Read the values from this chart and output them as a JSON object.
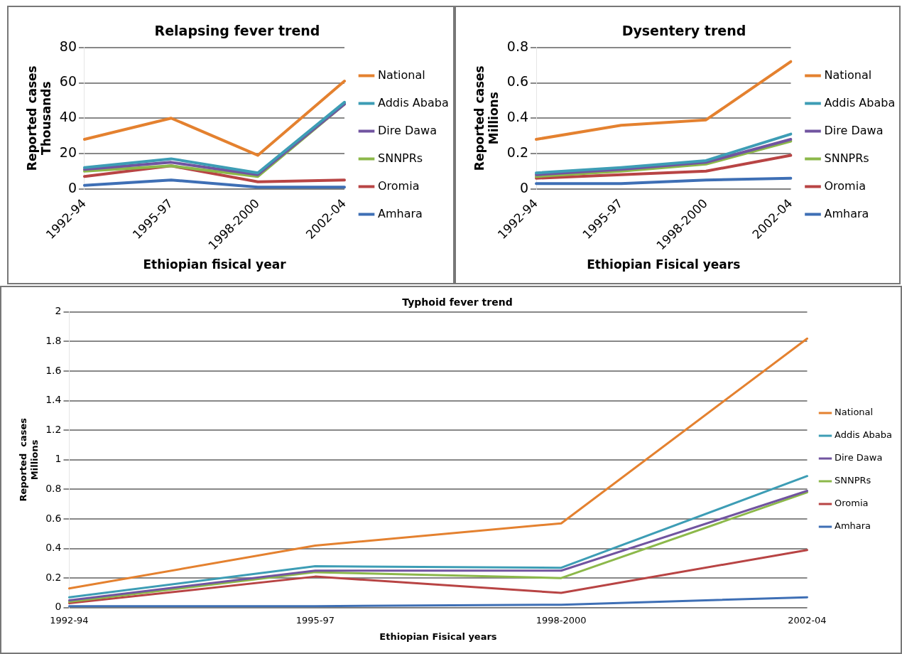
{
  "chart_data": [
    {
      "type": "line",
      "title": "Relapsing fever trend",
      "xlabel": "Ethiopian fisical year",
      "ylabel": "Reported cases",
      "annotations": [
        "Thousands"
      ],
      "categories": [
        "1992-94",
        "1995-97",
        "1998-2000",
        "2002-04"
      ],
      "ylim": [
        0,
        80
      ],
      "yticks": [
        0,
        20,
        40,
        60,
        80
      ],
      "grid": "y",
      "legend": "right",
      "marker": "none",
      "line_style": "solid",
      "series": [
        {
          "name": "National",
          "color": "#e4812f",
          "values": [
            28,
            40,
            19,
            61
          ]
        },
        {
          "name": "Addis Ababa",
          "color": "#3d9db5",
          "values": [
            12,
            17,
            9,
            49
          ]
        },
        {
          "name": "Dire Dawa",
          "color": "#7154a0",
          "values": [
            11,
            15,
            8,
            48
          ]
        },
        {
          "name": "SNNPRs",
          "color": "#8cb84a",
          "values": [
            10,
            13,
            7,
            48
          ]
        },
        {
          "name": "Oromia",
          "color": "#b84444",
          "values": [
            7,
            13,
            4,
            5
          ]
        },
        {
          "name": "Amhara",
          "color": "#3e6fb5",
          "values": [
            2,
            5,
            1,
            1
          ]
        }
      ]
    },
    {
      "type": "line",
      "title": "Dysentery trend",
      "xlabel": "Ethiopian Fisical years",
      "ylabel": "Reported cases",
      "annotations": [
        "Millions"
      ],
      "categories": [
        "1992-94",
        "1995-97",
        "1998-2000",
        "2002-04"
      ],
      "ylim": [
        0,
        0.8
      ],
      "yticks": [
        0,
        0.2,
        0.4,
        0.6,
        0.8
      ],
      "grid": "y",
      "legend": "right",
      "marker": "none",
      "line_style": "solid",
      "series": [
        {
          "name": "National",
          "color": "#e4812f",
          "values": [
            0.28,
            0.36,
            0.39,
            0.72
          ]
        },
        {
          "name": "Addis Ababa",
          "color": "#3d9db5",
          "values": [
            0.09,
            0.12,
            0.16,
            0.31
          ]
        },
        {
          "name": "Dire Dawa",
          "color": "#7154a0",
          "values": [
            0.08,
            0.11,
            0.15,
            0.28
          ]
        },
        {
          "name": "SNNPRs",
          "color": "#8cb84a",
          "values": [
            0.07,
            0.1,
            0.14,
            0.27
          ]
        },
        {
          "name": "Oromia",
          "color": "#b84444",
          "values": [
            0.06,
            0.08,
            0.1,
            0.19
          ]
        },
        {
          "name": "Amhara",
          "color": "#3e6fb5",
          "values": [
            0.03,
            0.03,
            0.05,
            0.06
          ]
        }
      ]
    },
    {
      "type": "line",
      "title": "Typhoid fever trend",
      "xlabel": "Ethiopian Fisical years",
      "ylabel": "Reported  cases",
      "annotations": [
        "Millions"
      ],
      "categories": [
        "1992-94",
        "1995-97",
        "1998-2000",
        "2002-04"
      ],
      "ylim": [
        0,
        2
      ],
      "yticks": [
        0,
        0.2,
        0.4,
        0.6,
        0.8,
        1,
        1.2,
        1.4,
        1.6,
        1.8,
        2
      ],
      "grid": "y",
      "legend": "right",
      "marker": "none",
      "line_style": "solid",
      "series": [
        {
          "name": "National",
          "color": "#e4812f",
          "values": [
            0.13,
            0.42,
            0.57,
            1.82
          ]
        },
        {
          "name": "Addis Ababa",
          "color": "#3d9db5",
          "values": [
            0.07,
            0.28,
            0.27,
            0.89
          ]
        },
        {
          "name": "Dire Dawa",
          "color": "#7154a0",
          "values": [
            0.05,
            0.25,
            0.25,
            0.79
          ]
        },
        {
          "name": "SNNPRs",
          "color": "#8cb84a",
          "values": [
            0.04,
            0.24,
            0.2,
            0.78
          ]
        },
        {
          "name": "Oromia",
          "color": "#b84444",
          "values": [
            0.03,
            0.21,
            0.1,
            0.39
          ]
        },
        {
          "name": "Amhara",
          "color": "#3e6fb5",
          "values": [
            0.01,
            0.01,
            0.02,
            0.07
          ]
        }
      ]
    }
  ]
}
